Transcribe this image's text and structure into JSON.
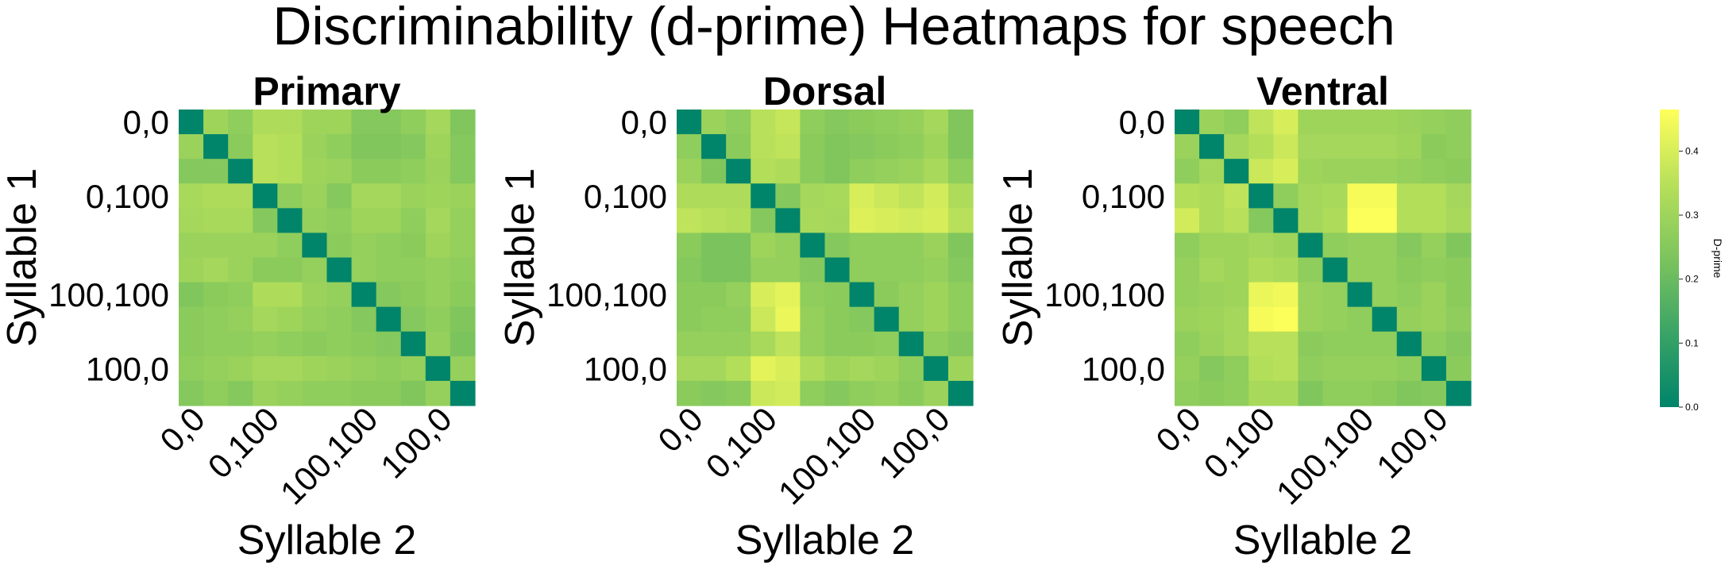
{
  "chart_data": {
    "type": "heatmap",
    "title": "Discriminability (d-prime) Heatmaps for speech",
    "tick_labels": [
      "0,0",
      "0,100",
      "100,100",
      "100,0"
    ],
    "colormap": {
      "stops": [
        "#00846a",
        "#3aa466",
        "#7cc45d",
        "#b8e05a",
        "#ffff5a"
      ],
      "vmin": 0.0,
      "vmax": 0.465,
      "ticks": [
        0.0,
        0.1,
        0.2,
        0.3,
        0.4
      ],
      "tick_labels": [
        "0.0",
        "0.1",
        "0.2",
        "0.3",
        "0.4"
      ],
      "label": "D-prime"
    },
    "panels": [
      {
        "title": "Primary",
        "xlabel": "Syllable 2",
        "ylabel": "Syllable 1",
        "matrix": [
          [
            0.0,
            0.3,
            0.27,
            0.33,
            0.33,
            0.3,
            0.3,
            0.25,
            0.25,
            0.27,
            0.31,
            0.24
          ],
          [
            0.29,
            0.0,
            0.26,
            0.35,
            0.34,
            0.29,
            0.27,
            0.24,
            0.24,
            0.25,
            0.3,
            0.25
          ],
          [
            0.25,
            0.25,
            0.0,
            0.35,
            0.34,
            0.3,
            0.29,
            0.26,
            0.26,
            0.27,
            0.29,
            0.25
          ],
          [
            0.32,
            0.33,
            0.33,
            0.0,
            0.27,
            0.29,
            0.25,
            0.31,
            0.31,
            0.29,
            0.3,
            0.29
          ],
          [
            0.31,
            0.32,
            0.32,
            0.25,
            0.0,
            0.28,
            0.27,
            0.3,
            0.3,
            0.27,
            0.31,
            0.28
          ],
          [
            0.29,
            0.29,
            0.29,
            0.29,
            0.27,
            0.0,
            0.26,
            0.28,
            0.27,
            0.26,
            0.3,
            0.28
          ],
          [
            0.3,
            0.31,
            0.29,
            0.26,
            0.26,
            0.28,
            0.0,
            0.28,
            0.27,
            0.27,
            0.28,
            0.27
          ],
          [
            0.24,
            0.26,
            0.27,
            0.33,
            0.33,
            0.29,
            0.28,
            0.0,
            0.25,
            0.26,
            0.28,
            0.26
          ],
          [
            0.26,
            0.27,
            0.28,
            0.31,
            0.3,
            0.28,
            0.27,
            0.25,
            0.0,
            0.25,
            0.27,
            0.24
          ],
          [
            0.26,
            0.27,
            0.27,
            0.28,
            0.27,
            0.26,
            0.27,
            0.26,
            0.25,
            0.0,
            0.28,
            0.23
          ],
          [
            0.27,
            0.28,
            0.29,
            0.31,
            0.31,
            0.3,
            0.29,
            0.28,
            0.27,
            0.28,
            0.0,
            0.28
          ],
          [
            0.25,
            0.27,
            0.25,
            0.29,
            0.28,
            0.27,
            0.27,
            0.26,
            0.26,
            0.24,
            0.28,
            0.0
          ]
        ]
      },
      {
        "title": "Dorsal",
        "xlabel": "Syllable 2",
        "ylabel": "Syllable 1",
        "matrix": [
          [
            0.0,
            0.29,
            0.27,
            0.35,
            0.37,
            0.27,
            0.25,
            0.26,
            0.27,
            0.28,
            0.31,
            0.24
          ],
          [
            0.27,
            0.0,
            0.26,
            0.35,
            0.36,
            0.26,
            0.24,
            0.25,
            0.26,
            0.27,
            0.3,
            0.24
          ],
          [
            0.29,
            0.24,
            0.0,
            0.34,
            0.33,
            0.26,
            0.24,
            0.27,
            0.28,
            0.29,
            0.32,
            0.27
          ],
          [
            0.33,
            0.33,
            0.33,
            0.0,
            0.25,
            0.31,
            0.32,
            0.4,
            0.38,
            0.36,
            0.39,
            0.33
          ],
          [
            0.36,
            0.35,
            0.34,
            0.25,
            0.0,
            0.32,
            0.31,
            0.41,
            0.4,
            0.39,
            0.4,
            0.35
          ],
          [
            0.26,
            0.23,
            0.23,
            0.3,
            0.28,
            0.0,
            0.25,
            0.27,
            0.27,
            0.27,
            0.29,
            0.24
          ],
          [
            0.25,
            0.23,
            0.23,
            0.28,
            0.28,
            0.25,
            0.0,
            0.27,
            0.27,
            0.27,
            0.28,
            0.25
          ],
          [
            0.26,
            0.26,
            0.28,
            0.4,
            0.42,
            0.27,
            0.26,
            0.0,
            0.26,
            0.28,
            0.3,
            0.27
          ],
          [
            0.26,
            0.27,
            0.27,
            0.38,
            0.43,
            0.28,
            0.26,
            0.25,
            0.0,
            0.28,
            0.3,
            0.27
          ],
          [
            0.28,
            0.28,
            0.28,
            0.32,
            0.36,
            0.28,
            0.26,
            0.26,
            0.27,
            0.0,
            0.27,
            0.25
          ],
          [
            0.31,
            0.31,
            0.34,
            0.42,
            0.4,
            0.33,
            0.3,
            0.31,
            0.3,
            0.27,
            0.0,
            0.3
          ],
          [
            0.26,
            0.25,
            0.26,
            0.38,
            0.39,
            0.27,
            0.25,
            0.27,
            0.28,
            0.26,
            0.29,
            0.0
          ]
        ]
      },
      {
        "title": "Ventral",
        "xlabel": "Syllable 2",
        "ylabel": "Syllable 1",
        "matrix": [
          [
            0.0,
            0.29,
            0.27,
            0.36,
            0.4,
            0.3,
            0.3,
            0.3,
            0.3,
            0.29,
            0.28,
            0.27
          ],
          [
            0.29,
            0.0,
            0.31,
            0.34,
            0.38,
            0.31,
            0.31,
            0.31,
            0.31,
            0.3,
            0.26,
            0.27
          ],
          [
            0.27,
            0.31,
            0.0,
            0.38,
            0.4,
            0.3,
            0.29,
            0.29,
            0.29,
            0.28,
            0.27,
            0.26
          ],
          [
            0.34,
            0.33,
            0.36,
            0.0,
            0.27,
            0.31,
            0.32,
            0.45,
            0.45,
            0.34,
            0.34,
            0.31
          ],
          [
            0.39,
            0.33,
            0.35,
            0.25,
            0.0,
            0.31,
            0.33,
            0.46,
            0.46,
            0.34,
            0.34,
            0.32
          ],
          [
            0.27,
            0.3,
            0.3,
            0.31,
            0.3,
            0.0,
            0.27,
            0.28,
            0.28,
            0.25,
            0.28,
            0.24
          ],
          [
            0.28,
            0.31,
            0.3,
            0.33,
            0.32,
            0.27,
            0.0,
            0.28,
            0.28,
            0.26,
            0.27,
            0.26
          ],
          [
            0.28,
            0.29,
            0.3,
            0.43,
            0.44,
            0.29,
            0.28,
            0.0,
            0.28,
            0.27,
            0.29,
            0.26
          ],
          [
            0.29,
            0.3,
            0.31,
            0.45,
            0.46,
            0.29,
            0.28,
            0.27,
            0.0,
            0.28,
            0.29,
            0.27
          ],
          [
            0.27,
            0.29,
            0.31,
            0.35,
            0.35,
            0.26,
            0.27,
            0.27,
            0.27,
            0.0,
            0.27,
            0.25
          ],
          [
            0.28,
            0.25,
            0.27,
            0.34,
            0.35,
            0.27,
            0.28,
            0.28,
            0.28,
            0.27,
            0.0,
            0.26
          ],
          [
            0.27,
            0.26,
            0.27,
            0.32,
            0.32,
            0.24,
            0.27,
            0.27,
            0.26,
            0.24,
            0.25,
            0.0
          ]
        ]
      }
    ]
  }
}
